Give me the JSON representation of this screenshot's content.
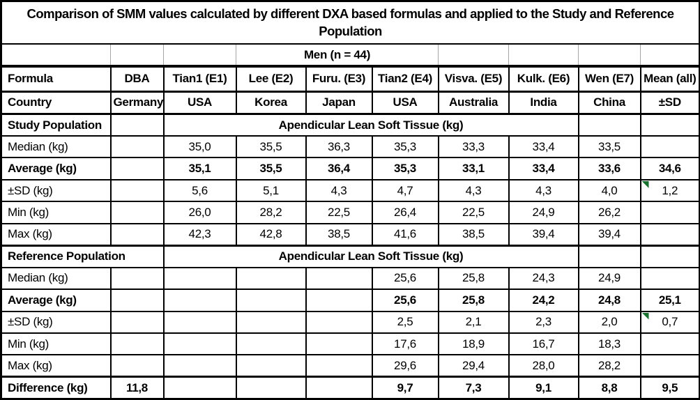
{
  "title": "Comparison of SMM values calculated by different DXA based formulas and applied to the Study and Reference Population",
  "subtitle": "Men (n = 44)",
  "header_row": [
    "Formula",
    "DBA",
    "Tian1 (E1)",
    "Lee (E2)",
    "Furu. (E3)",
    "Tian2 (E4)",
    "Visva. (E5)",
    "Kulk. (E6)",
    "Wen (E7)",
    "Mean (all)"
  ],
  "country_row": [
    "Country",
    "Germany",
    "USA",
    "Korea",
    "Japan",
    "USA",
    "Australia",
    "India",
    "China",
    "±SD"
  ],
  "sections": [
    {
      "label": "Study Population",
      "span_label": "Apendicular Lean Soft Tissue (kg)",
      "rows": [
        {
          "label": "Median (kg)",
          "bold": false,
          "flag_last": false,
          "values": [
            "",
            "35,0",
            "35,5",
            "36,3",
            "35,3",
            "33,3",
            "33,4",
            "33,5",
            ""
          ]
        },
        {
          "label": "Average (kg)",
          "bold": true,
          "flag_last": false,
          "values": [
            "",
            "35,1",
            "35,5",
            "36,4",
            "35,3",
            "33,1",
            "33,4",
            "33,6",
            "34,6"
          ]
        },
        {
          "label": "±SD (kg)",
          "bold": false,
          "flag_last": true,
          "values": [
            "",
            "5,6",
            "5,1",
            "4,3",
            "4,7",
            "4,3",
            "4,3",
            "4,0",
            "1,2"
          ]
        },
        {
          "label": "Min (kg)",
          "bold": false,
          "flag_last": false,
          "values": [
            "",
            "26,0",
            "28,2",
            "22,5",
            "26,4",
            "22,5",
            "24,9",
            "26,2",
            ""
          ]
        },
        {
          "label": "Max (kg)",
          "bold": false,
          "flag_last": false,
          "values": [
            "",
            "42,3",
            "42,8",
            "38,5",
            "41,6",
            "38,5",
            "39,4",
            "39,4",
            ""
          ]
        }
      ]
    },
    {
      "label": "Reference Population",
      "span_label": "Apendicular Lean Soft Tissue (kg)",
      "rows": [
        {
          "label": "Median (kg)",
          "bold": false,
          "flag_last": false,
          "values": [
            "",
            "",
            "",
            "",
            "25,6",
            "25,8",
            "24,3",
            "24,9",
            ""
          ]
        },
        {
          "label": "Average (kg)",
          "bold": true,
          "flag_last": false,
          "values": [
            "",
            "",
            "",
            "",
            "25,6",
            "25,8",
            "24,2",
            "24,8",
            "25,1"
          ]
        },
        {
          "label": "±SD (kg)",
          "bold": false,
          "flag_last": true,
          "values": [
            "",
            "",
            "",
            "",
            "2,5",
            "2,1",
            "2,3",
            "2,0",
            "0,7"
          ]
        },
        {
          "label": "Min (kg)",
          "bold": false,
          "flag_last": false,
          "values": [
            "",
            "",
            "",
            "",
            "17,6",
            "18,9",
            "16,7",
            "18,3",
            ""
          ]
        },
        {
          "label": "Max (kg)",
          "bold": false,
          "flag_last": false,
          "values": [
            "",
            "",
            "",
            "",
            "29,6",
            "29,4",
            "28,0",
            "28,2",
            ""
          ]
        }
      ]
    }
  ],
  "difference_row": {
    "label": "Difference (kg)",
    "values": [
      "11,8",
      "",
      "",
      "",
      "9,7",
      "7,3",
      "9,1",
      "8,8",
      "9,5"
    ]
  },
  "colors": {
    "error_indicator": "#17702e",
    "men_row_gridline": "#a6a6a6",
    "border": "#000000",
    "background": "#ffffff"
  }
}
